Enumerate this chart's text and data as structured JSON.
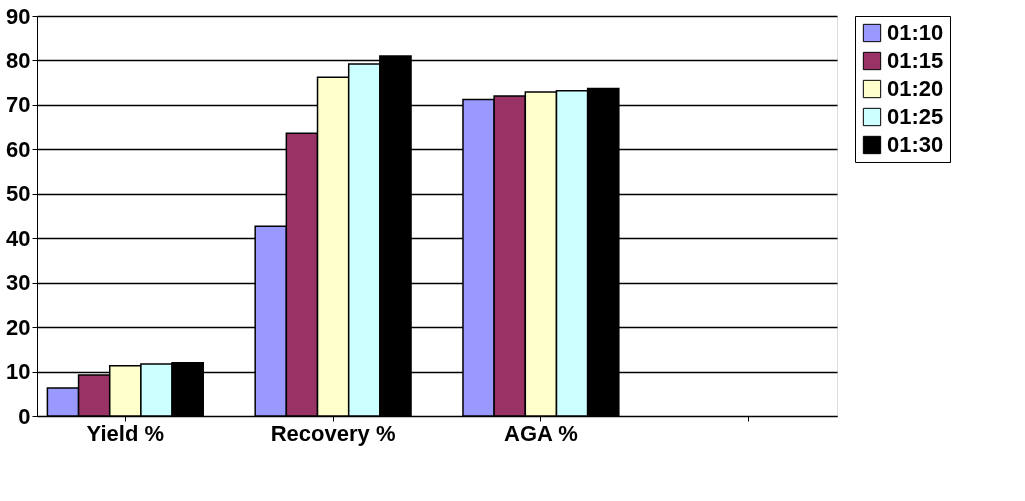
{
  "chart_data": {
    "type": "bar",
    "categories": [
      "Yield %",
      "Recovery %",
      "AGA %",
      null
    ],
    "series": [
      {
        "name": "01:10",
        "color": "#9999ff",
        "values": [
          6.3,
          42.7,
          71.2,
          null
        ]
      },
      {
        "name": "01:15",
        "color": "#993366",
        "values": [
          9.2,
          63.6,
          72.0,
          null
        ]
      },
      {
        "name": "01:20",
        "color": "#ffffcc",
        "values": [
          11.3,
          76.2,
          72.9,
          null
        ]
      },
      {
        "name": "01:25",
        "color": "#ccffff",
        "values": [
          11.7,
          79.2,
          73.2,
          null
        ]
      },
      {
        "name": "01:30",
        "color": "#000000",
        "values": [
          12,
          81,
          73.7,
          null
        ]
      }
    ],
    "ylim": [
      0,
      90
    ],
    "yticks": [
      0,
      10,
      20,
      30,
      40,
      50,
      60,
      70,
      80,
      90
    ],
    "grid": "y",
    "legend": "right"
  }
}
